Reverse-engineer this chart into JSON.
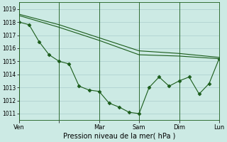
{
  "background_color": "#cceae4",
  "grid_color": "#aacccc",
  "line_color": "#1a5c1a",
  "xlabel": "Pression niveau de la mer( hPa )",
  "ylim": [
    1010.5,
    1019.5
  ],
  "yticks": [
    1011,
    1012,
    1013,
    1014,
    1015,
    1016,
    1017,
    1018,
    1019
  ],
  "xlim": [
    0,
    20
  ],
  "day_positions": [
    0.0,
    4.0,
    8.0,
    12.0,
    16.0,
    20.0
  ],
  "day_labels": [
    "Ven",
    "",
    "Mar",
    "Sam",
    "Dim",
    "Lun"
  ],
  "line1_x": [
    0,
    4,
    8,
    12,
    16,
    20
  ],
  "line1_y": [
    1018.6,
    1017.8,
    1016.8,
    1015.8,
    1015.6,
    1015.3
  ],
  "line2_x": [
    0,
    4,
    8,
    12,
    16,
    20
  ],
  "line2_y": [
    1018.5,
    1017.6,
    1016.6,
    1015.5,
    1015.4,
    1015.2
  ],
  "line3_x": [
    0,
    1,
    2,
    3,
    4,
    5,
    6,
    7,
    8,
    9,
    10,
    11,
    12,
    13,
    14,
    15,
    16,
    17,
    18,
    19,
    20
  ],
  "line3_y": [
    1018.0,
    1017.8,
    1016.5,
    1015.5,
    1015.0,
    1014.8,
    1013.1,
    1012.8,
    1012.7,
    1011.8,
    1011.5,
    1011.1,
    1011.0,
    1013.0,
    1013.8,
    1013.1,
    1013.5,
    1013.8,
    1012.5,
    1013.3,
    1015.2
  ]
}
